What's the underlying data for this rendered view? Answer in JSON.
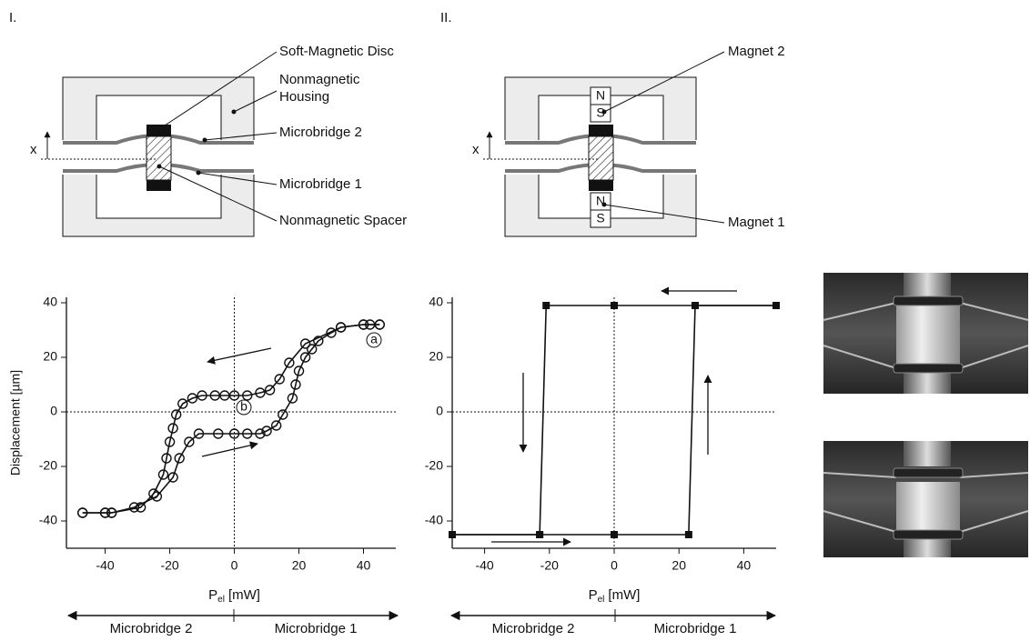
{
  "panel_labels": [
    "I.",
    "II."
  ],
  "diagram_1": {
    "soft_magnetic_disc": "Soft-Magnetic Disc",
    "housing": [
      "Nonmagnetic",
      "Housing"
    ],
    "microbridge_2": "Microbridge 2",
    "microbridge_1": "Microbridge 1",
    "spacer": "Nonmagnetic Spacer",
    "x_label": "x"
  },
  "diagram_2": {
    "magnet_2": "Magnet 2",
    "magnet_1": "Magnet 1",
    "magnets": [
      {
        "north": "N",
        "south": "S"
      },
      {
        "north": "N",
        "south": "S"
      }
    ],
    "x_label": "x"
  },
  "chart_data": [
    {
      "type": "line",
      "marker": "circle",
      "ylabel": "Displacement [µm]",
      "xlabel": {
        "symbol": "P",
        "subscript": "el",
        "unit": "[mW]"
      },
      "xlim": [
        -52,
        50
      ],
      "ylim": [
        -50,
        42
      ],
      "xticks": [
        -40,
        -20,
        0,
        20,
        40
      ],
      "yticks": [
        -40,
        -20,
        0,
        20,
        40
      ],
      "zero_lines": true,
      "annotations": [
        "a",
        "b"
      ],
      "series": [
        {
          "color": "#111111",
          "x": [
            45,
            42,
            40,
            33,
            22,
            17,
            14,
            11,
            8,
            4,
            0,
            -3,
            -6,
            -10,
            -13,
            -16,
            -18,
            -19,
            -20,
            -21,
            -22,
            -25,
            -29,
            -38,
            -40,
            -47
          ],
          "values": [
            32,
            32,
            32,
            31,
            25,
            18,
            12,
            8,
            7,
            6,
            6,
            6,
            6,
            6,
            5,
            3,
            -1,
            -6,
            -11,
            -17,
            -23,
            -30,
            -35,
            -37,
            -37,
            -37
          ]
        },
        {
          "color": "#111111",
          "x": [
            -47,
            -40,
            -38,
            -31,
            -24,
            -19,
            -17,
            -14,
            -11,
            -5,
            0,
            4,
            8,
            10,
            13,
            15,
            18,
            19,
            20,
            22,
            24,
            26,
            30,
            33,
            40,
            45
          ],
          "values": [
            -37,
            -37,
            -37,
            -35,
            -31,
            -24,
            -17,
            -11,
            -8,
            -8,
            -8,
            -8,
            -8,
            -7,
            -5,
            -1,
            5,
            10,
            15,
            20,
            23,
            26,
            29,
            31,
            32,
            32
          ]
        }
      ]
    },
    {
      "type": "line",
      "marker": "square",
      "xlabel": {
        "symbol": "P",
        "subscript": "el",
        "unit": "[mW]"
      },
      "xlim": [
        -50,
        50
      ],
      "ylim": [
        -50,
        42
      ],
      "xticks": [
        -40,
        -20,
        0,
        20,
        40
      ],
      "yticks": [
        -40,
        -20,
        0,
        20,
        40
      ],
      "zero_lines": true,
      "series": [
        {
          "color": "#111111",
          "x": [
            50,
            25,
            0,
            -21,
            -23,
            -50
          ],
          "values": [
            39,
            39,
            39,
            39,
            -45,
            -45
          ]
        },
        {
          "color": "#111111",
          "x": [
            -50,
            -23,
            0,
            23,
            25,
            50
          ],
          "values": [
            -45,
            -45,
            -45,
            -45,
            39,
            39
          ]
        }
      ]
    }
  ],
  "direction_scales": [
    [
      "Microbridge 2",
      "Microbridge 1"
    ],
    [
      "Microbridge 2",
      "Microbridge 1"
    ]
  ]
}
